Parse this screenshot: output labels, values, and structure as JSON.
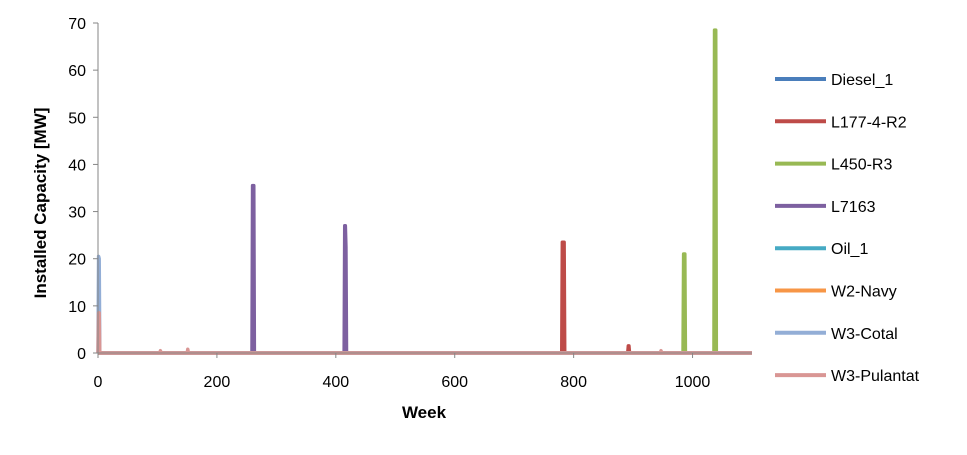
{
  "chart_data": {
    "type": "line",
    "title": "",
    "xlabel": "Week",
    "ylabel": "Installed Capacity [MW]",
    "xlim": [
      0,
      1100
    ],
    "ylim": [
      0,
      70
    ],
    "xticks": [
      0,
      200,
      400,
      600,
      800,
      1000
    ],
    "yticks": [
      0,
      10,
      20,
      30,
      40,
      50,
      60,
      70
    ],
    "grid": false,
    "legend_position": "right",
    "series": [
      {
        "name": "Diesel_1",
        "color": "#4a7ebb",
        "x": [
          0,
          1100
        ],
        "y": [
          0,
          0
        ]
      },
      {
        "name": "L177-4-R2",
        "color": "#be4b48",
        "x": [
          0,
          780,
          781,
          782,
          783,
          784,
          785,
          891,
          892,
          893,
          894,
          895,
          1100
        ],
        "y": [
          0,
          0,
          23.5,
          23.5,
          23.5,
          23.5,
          0,
          0,
          1.5,
          1.5,
          0,
          0,
          0
        ]
      },
      {
        "name": "L450-R3",
        "color": "#98b954",
        "x": [
          0,
          984,
          985,
          986,
          987,
          988,
          1036,
          1037,
          1038,
          1039,
          1040,
          1100
        ],
        "y": [
          0,
          0,
          21,
          21,
          21,
          0,
          0,
          68.5,
          68.5,
          68.5,
          0,
          0
        ]
      },
      {
        "name": "L7163",
        "color": "#7d60a0",
        "x": [
          0,
          259,
          260,
          261,
          262,
          263,
          414,
          415,
          416,
          417,
          418,
          419,
          1100
        ],
        "y": [
          0,
          0,
          35.5,
          35.5,
          35.5,
          0,
          0,
          27,
          27,
          22.5,
          0,
          0,
          0
        ]
      },
      {
        "name": "Oil_1",
        "color": "#46aac4",
        "x": [
          0,
          1100
        ],
        "y": [
          0,
          0
        ]
      },
      {
        "name": "W2-Navy",
        "color": "#f79646",
        "x": [
          0,
          1100
        ],
        "y": [
          0,
          0
        ]
      },
      {
        "name": "W3-Cotal",
        "color": "#93aed6",
        "x": [
          0,
          1,
          2,
          3,
          1100
        ],
        "y": [
          0,
          20.5,
          20,
          0,
          0
        ]
      },
      {
        "name": "W3-Pulantat",
        "color": "#d99694",
        "x": [
          0,
          1,
          2,
          3,
          104,
          105,
          106,
          150,
          151,
          152,
          946,
          947,
          948,
          1100
        ],
        "y": [
          0,
          8.5,
          8.5,
          0,
          0,
          0.5,
          0,
          0,
          0.8,
          0,
          0,
          0.5,
          0,
          0
        ]
      }
    ]
  }
}
